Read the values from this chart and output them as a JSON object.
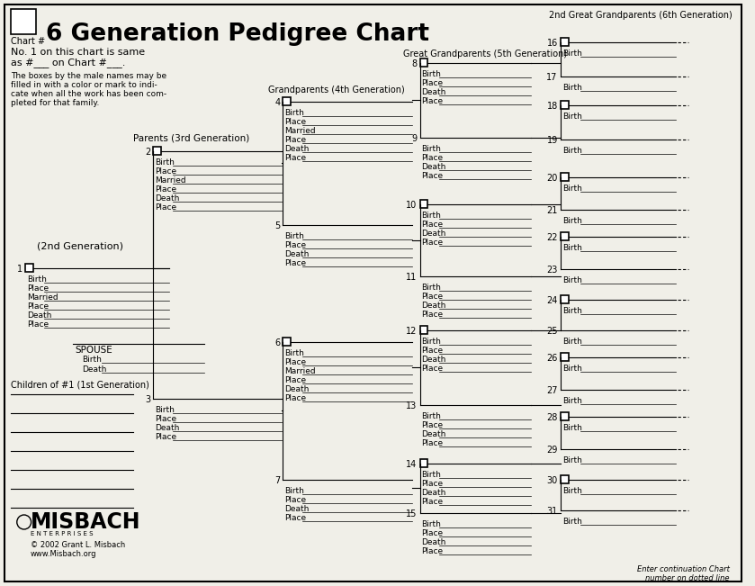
{
  "title": "6 Generation Pedigree Chart",
  "bg_color": "#f0efe8",
  "border_color": "#000000",
  "text_color": "#000000",
  "gen3_header": "Parents (3rd Generation)",
  "gen4_header": "Grandparents (4th Generation)",
  "gen5_header": "Great Grandparents (5th Generation)",
  "gen6_header1": "2nd Great Grandparents (6th Generation)",
  "gen2_label": "(2nd Generation)",
  "chart_num_label": "Chart #",
  "info1": "No. 1 on this chart is same",
  "info2": "as #___ on Chart #___.",
  "info3_lines": [
    "The boxes by the male names may be",
    "filled in with a color or mark to indi-",
    "cate when all the work has been com-",
    "pleted for that family."
  ],
  "spouse_label": "SPOUSE",
  "children_label": "Children of #1 (1st Generation)",
  "footer1": "MISBACH",
  "footer2": "E N T E R P R I S E S",
  "footer3": "© 2002 Grant L. Misbach",
  "footer4": "www.Misbach.org",
  "continuation": "Enter continuation Chart",
  "continuation2": "number on dotted line"
}
